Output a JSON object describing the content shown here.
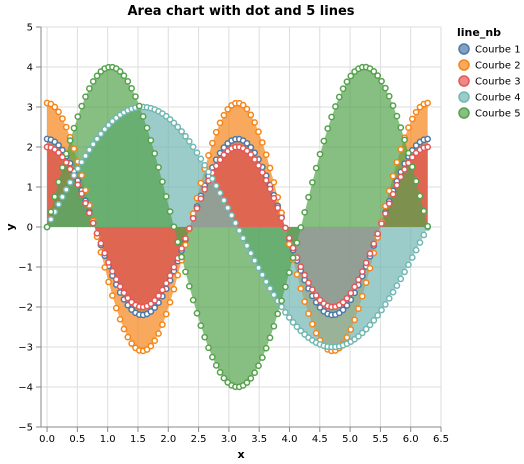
{
  "chart_data": {
    "type": "area",
    "title": "Area chart with dot and 5 lines",
    "xlabel": "x",
    "ylabel": "y",
    "xlim": [
      -0.1,
      6.5
    ],
    "ylim": [
      -5,
      5
    ],
    "x_ticks": [
      "0.0",
      "0.5",
      "1.0",
      "1.5",
      "2.0",
      "2.5",
      "3.0",
      "3.5",
      "4.0",
      "4.5",
      "5.0",
      "5.5",
      "6.0",
      "6.5"
    ],
    "x_tick_values": [
      0,
      0.5,
      1.0,
      1.5,
      2.0,
      2.5,
      3.0,
      3.5,
      4.0,
      4.5,
      5.0,
      5.5,
      6.0,
      6.5
    ],
    "y_ticks": [
      "−5",
      "−4",
      "−3",
      "−2",
      "−1",
      "0",
      "1",
      "2",
      "3",
      "4",
      "5"
    ],
    "y_tick_values": [
      -5,
      -4,
      -3,
      -2,
      -1,
      0,
      1,
      2,
      3,
      4,
      5
    ],
    "grid": true,
    "legend": {
      "title": "line_nb",
      "placement": "right"
    },
    "x_range": [
      0,
      6.28
    ],
    "series": [
      {
        "name": "Courbe 1",
        "color": "#4c78a8",
        "amplitude": 2.2,
        "frequency": 2.0,
        "phase": 0.0,
        "form": "cos"
      },
      {
        "name": "Courbe 2",
        "color": "#f58518",
        "amplitude": 3.1,
        "frequency": 2.0,
        "phase": 0.0,
        "form": "cos"
      },
      {
        "name": "Courbe 3",
        "color": "#e45756",
        "amplitude": 2.0,
        "frequency": 2.0,
        "phase": 0.0,
        "form": "cos"
      },
      {
        "name": "Courbe 4",
        "color": "#72b7b2",
        "amplitude": 3.0,
        "frequency": 1.0,
        "phase": 0.0,
        "form": "sin"
      },
      {
        "name": "Courbe 5",
        "color": "#54a24b",
        "amplitude": 4.0,
        "frequency": 1.5,
        "phase": 0.0,
        "form": "sin"
      }
    ]
  }
}
